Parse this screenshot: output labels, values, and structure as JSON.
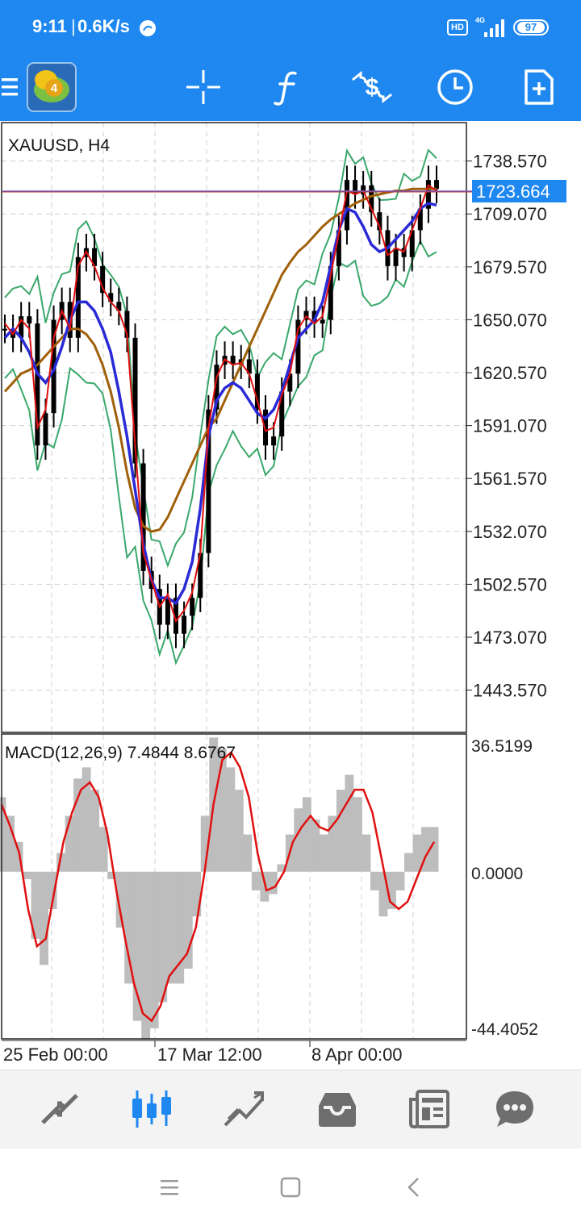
{
  "status_bar": {
    "time": "9:11",
    "speed": "0.6K/s",
    "hd": "HD",
    "network": "4G",
    "battery": "97"
  },
  "toolbar": {
    "icons": [
      "menu-icon",
      "metatrader-4-logo",
      "crosshair-icon",
      "indicators-f-icon",
      "trade-dollar-icon",
      "timeframe-clock-icon",
      "new-order-icon"
    ]
  },
  "chart": {
    "symbol_label": "XAUUSD, H4",
    "price_labels": [
      "1738.570",
      "1709.070",
      "1679.570",
      "1650.070",
      "1620.570",
      "1591.070",
      "1561.570",
      "1532.070",
      "1502.570",
      "1473.070",
      "1443.570"
    ],
    "current_price": "1723.664",
    "accent": "#1e88f0",
    "macd_label": "MACD(12,26,9) 7.4844 8.6767",
    "macd_scale": [
      "36.5199",
      "0.0000",
      "-44.4052"
    ],
    "time_labels": [
      "25 Feb 00:00",
      "17 Mar 12:00",
      "8 Apr 00:00"
    ]
  },
  "chart_data": [
    {
      "type": "line",
      "title": "XAUUSD, H4",
      "x": [
        0,
        10,
        20,
        30,
        40,
        50,
        60,
        70,
        80,
        90,
        100,
        110,
        120,
        130,
        140,
        150,
        160,
        170,
        180,
        190,
        200,
        210,
        220,
        230,
        240,
        250,
        260,
        270,
        280,
        290,
        300,
        310,
        320,
        330,
        340,
        350,
        360,
        370,
        380,
        390,
        400,
        410,
        420,
        430,
        440,
        450,
        460,
        470,
        480,
        490,
        500,
        510,
        520,
        530
      ],
      "series": [
        {
          "name": "close",
          "values": [
            1645,
            1640,
            1652,
            1648,
            1580,
            1598,
            1650,
            1660,
            1640,
            1685,
            1690,
            1680,
            1665,
            1660,
            1655,
            1640,
            1570,
            1510,
            1500,
            1480,
            1495,
            1475,
            1485,
            1495,
            1520,
            1600,
            1625,
            1630,
            1625,
            1628,
            1620,
            1600,
            1580,
            1585,
            1610,
            1620,
            1650,
            1655,
            1648,
            1650,
            1680,
            1700,
            1728,
            1720,
            1725,
            1710,
            1700,
            1680,
            1690,
            1685,
            1700,
            1712,
            1728,
            1723
          ]
        },
        {
          "name": "ema_fast_red",
          "values": [
            1648,
            1642,
            1650,
            1645,
            1590,
            1600,
            1640,
            1655,
            1645,
            1680,
            1688,
            1680,
            1668,
            1660,
            1655,
            1642,
            1580,
            1520,
            1505,
            1490,
            1497,
            1482,
            1488,
            1498,
            1520,
            1590,
            1618,
            1628,
            1625,
            1626,
            1620,
            1605,
            1588,
            1590,
            1608,
            1620,
            1645,
            1652,
            1648,
            1652,
            1675,
            1698,
            1722,
            1720,
            1722,
            1712,
            1702,
            1686,
            1690,
            1688,
            1700,
            1712,
            1725,
            1722
          ]
        },
        {
          "name": "ma_blue",
          "values": [
            1640,
            1645,
            1640,
            1632,
            1620,
            1615,
            1622,
            1635,
            1650,
            1660,
            1660,
            1655,
            1645,
            1632,
            1610,
            1585,
            1555,
            1525,
            1505,
            1495,
            1495,
            1492,
            1500,
            1515,
            1545,
            1585,
            1605,
            1612,
            1615,
            1612,
            1605,
            1598,
            1595,
            1600,
            1610,
            1625,
            1640,
            1645,
            1650,
            1660,
            1680,
            1700,
            1712,
            1710,
            1702,
            1692,
            1688,
            1690,
            1695,
            1700,
            1705,
            1712,
            1715,
            1714
          ]
        },
        {
          "name": "ma_slow_brown",
          "values": [
            1610,
            1615,
            1620,
            1622,
            1625,
            1630,
            1635,
            1640,
            1645,
            1645,
            1642,
            1636,
            1625,
            1610,
            1590,
            1565,
            1545,
            1535,
            1532,
            1533,
            1540,
            1550,
            1560,
            1570,
            1580,
            1590,
            1595,
            1605,
            1615,
            1625,
            1635,
            1645,
            1655,
            1665,
            1675,
            1682,
            1688,
            1692,
            1697,
            1702,
            1706,
            1709,
            1712,
            1715,
            1717,
            1719,
            1720,
            1721,
            1722,
            1722,
            1723,
            1723,
            1723,
            1723
          ]
        }
      ],
      "ylim": [
        1420,
        1760
      ],
      "grid": true
    },
    {
      "type": "bar",
      "title": "MACD(12,26,9) 7.4844 8.6767",
      "series": [
        {
          "name": "macd_histogram",
          "values": [
            20,
            15,
            8,
            -2,
            -18,
            -25,
            -10,
            5,
            15,
            25,
            28,
            22,
            12,
            -2,
            -15,
            -30,
            -40,
            -45,
            -42,
            -35,
            -30,
            -30,
            -26,
            -12,
            15,
            36,
            33,
            28,
            22,
            10,
            -5,
            -8,
            -6,
            2,
            10,
            17,
            20,
            14,
            10,
            15,
            22,
            26,
            20,
            10,
            -5,
            -12,
            -10,
            -5,
            5,
            10,
            12,
            12
          ]
        },
        {
          "name": "macd_signal",
          "values": [
            18,
            12,
            5,
            -10,
            -20,
            -18,
            -5,
            8,
            16,
            22,
            24,
            20,
            10,
            -5,
            -18,
            -30,
            -38,
            -40,
            -36,
            -28,
            -25,
            -22,
            -15,
            0,
            18,
            30,
            32,
            28,
            20,
            5,
            -5,
            -4,
            0,
            8,
            12,
            15,
            12,
            11,
            14,
            18,
            22,
            22,
            16,
            4,
            -8,
            -10,
            -8,
            -2,
            4,
            8
          ]
        }
      ],
      "ylim": [
        -44.4052,
        36.5199
      ],
      "grid": true
    }
  ],
  "bottom_nav": {
    "items": [
      "quotes-icon",
      "chart-icon",
      "trade-icon",
      "history-icon",
      "news-icon",
      "messages-icon"
    ]
  }
}
